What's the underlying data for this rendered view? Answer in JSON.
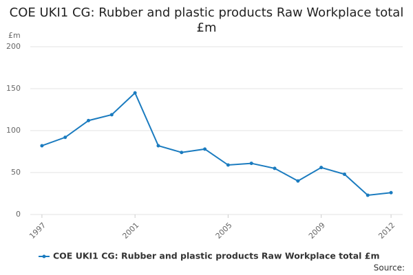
{
  "chart_data": {
    "type": "line",
    "title": "COE UKI1 CG: Rubber and plastic products Raw Workplace total £m",
    "y_unit": "£m",
    "x": [
      1997,
      1998,
      1999,
      2000,
      2001,
      2002,
      2003,
      2004,
      2005,
      2006,
      2007,
      2008,
      2009,
      2010,
      2011,
      2012
    ],
    "series": [
      {
        "name": "COE UKI1 CG: Rubber and plastic products Raw Workplace total £m",
        "color": "#1a7bbf",
        "values": [
          82,
          92,
          112,
          119,
          145,
          82,
          74,
          78,
          59,
          61,
          55,
          40,
          56,
          48,
          23,
          26
        ]
      }
    ],
    "xlim": [
      1996.5,
      2012.5
    ],
    "xticks": [
      1997,
      2001,
      2005,
      2009,
      2012
    ],
    "ylim": [
      0,
      200
    ],
    "yticks": [
      0,
      50,
      100,
      150,
      200
    ],
    "grid": true,
    "legend": "bottom",
    "source": "Source:"
  }
}
